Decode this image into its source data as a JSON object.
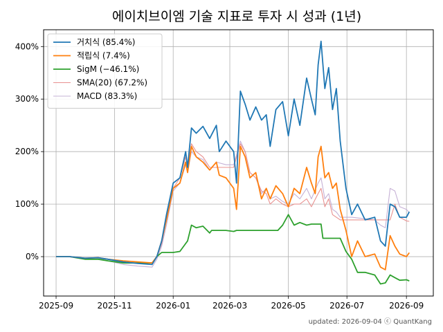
{
  "chart_data": {
    "type": "line",
    "title": "에이치브이엠 기술 지표로 투자 시 성과 (1년)",
    "xlabel": "",
    "ylabel": "",
    "x_ticks": [
      "2025-09",
      "2025-11",
      "2026-01",
      "2026-03",
      "2026-05",
      "2026-07",
      "2026-09"
    ],
    "y_ticks": [
      "0%",
      "100%",
      "200%",
      "300%",
      "400%"
    ],
    "xlim": [
      "2025-08-19",
      "2026-09-29"
    ],
    "ylim": [
      -75,
      432
    ],
    "grid": true,
    "legend_position": "top-left",
    "series": [
      {
        "name": "거치식 (85.4%)",
        "color": "#1f77b4",
        "points": [
          [
            "2025-09-01",
            0
          ],
          [
            "2025-09-15",
            0
          ],
          [
            "2025-10-01",
            -3
          ],
          [
            "2025-10-15",
            -2
          ],
          [
            "2025-10-25",
            -5
          ],
          [
            "2025-11-10",
            -10
          ],
          [
            "2025-11-25",
            -13
          ],
          [
            "2025-12-10",
            -15
          ],
          [
            "2025-12-15",
            0
          ],
          [
            "2025-12-20",
            30
          ],
          [
            "2025-12-25",
            80
          ],
          [
            "2026-01-01",
            140
          ],
          [
            "2026-01-08",
            150
          ],
          [
            "2026-01-14",
            200
          ],
          [
            "2026-01-16",
            170
          ],
          [
            "2026-01-20",
            245
          ],
          [
            "2026-01-25",
            235
          ],
          [
            "2026-02-01",
            248
          ],
          [
            "2026-02-08",
            225
          ],
          [
            "2026-02-15",
            250
          ],
          [
            "2026-02-18",
            200
          ],
          [
            "2026-02-25",
            220
          ],
          [
            "2026-03-05",
            200
          ],
          [
            "2026-03-08",
            140
          ],
          [
            "2026-03-12",
            315
          ],
          [
            "2026-03-17",
            290
          ],
          [
            "2026-03-22",
            260
          ],
          [
            "2026-03-28",
            285
          ],
          [
            "2026-04-03",
            260
          ],
          [
            "2026-04-08",
            270
          ],
          [
            "2026-04-12",
            210
          ],
          [
            "2026-04-18",
            280
          ],
          [
            "2026-04-25",
            295
          ],
          [
            "2026-05-01",
            230
          ],
          [
            "2026-05-07",
            300
          ],
          [
            "2026-05-13",
            250
          ],
          [
            "2026-05-20",
            340
          ],
          [
            "2026-05-25",
            300
          ],
          [
            "2026-05-29",
            270
          ],
          [
            "2026-06-01",
            365
          ],
          [
            "2026-06-04",
            410
          ],
          [
            "2026-06-08",
            320
          ],
          [
            "2026-06-12",
            360
          ],
          [
            "2026-06-16",
            280
          ],
          [
            "2026-06-20",
            320
          ],
          [
            "2026-06-24",
            220
          ],
          [
            "2026-06-30",
            130
          ],
          [
            "2026-07-06",
            80
          ],
          [
            "2026-07-12",
            100
          ],
          [
            "2026-07-20",
            70
          ],
          [
            "2026-07-30",
            75
          ],
          [
            "2026-08-05",
            30
          ],
          [
            "2026-08-10",
            20
          ],
          [
            "2026-08-15",
            100
          ],
          [
            "2026-08-20",
            95
          ],
          [
            "2026-08-25",
            75
          ],
          [
            "2026-09-01",
            75
          ],
          [
            "2026-09-04",
            85.4
          ]
        ]
      },
      {
        "name": "적립식 (7.4%)",
        "color": "#ff7f0e",
        "points": [
          [
            "2025-09-01",
            0
          ],
          [
            "2025-09-15",
            0
          ],
          [
            "2025-10-01",
            -3
          ],
          [
            "2025-10-15",
            -2
          ],
          [
            "2025-10-25",
            -5
          ],
          [
            "2025-11-10",
            -8
          ],
          [
            "2025-11-25",
            -10
          ],
          [
            "2025-12-10",
            -12
          ],
          [
            "2025-12-15",
            0
          ],
          [
            "2025-12-20",
            30
          ],
          [
            "2025-12-25",
            70
          ],
          [
            "2026-01-01",
            130
          ],
          [
            "2026-01-08",
            140
          ],
          [
            "2026-01-14",
            180
          ],
          [
            "2026-01-16",
            160
          ],
          [
            "2026-01-20",
            210
          ],
          [
            "2026-01-25",
            190
          ],
          [
            "2026-02-01",
            180
          ],
          [
            "2026-02-08",
            165
          ],
          [
            "2026-02-15",
            180
          ],
          [
            "2026-02-18",
            155
          ],
          [
            "2026-02-25",
            150
          ],
          [
            "2026-03-05",
            130
          ],
          [
            "2026-03-08",
            90
          ],
          [
            "2026-03-12",
            210
          ],
          [
            "2026-03-17",
            190
          ],
          [
            "2026-03-22",
            150
          ],
          [
            "2026-03-28",
            160
          ],
          [
            "2026-04-03",
            110
          ],
          [
            "2026-04-08",
            130
          ],
          [
            "2026-04-12",
            110
          ],
          [
            "2026-04-18",
            135
          ],
          [
            "2026-04-25",
            120
          ],
          [
            "2026-05-01",
            95
          ],
          [
            "2026-05-07",
            130
          ],
          [
            "2026-05-13",
            120
          ],
          [
            "2026-05-20",
            170
          ],
          [
            "2026-05-25",
            140
          ],
          [
            "2026-05-29",
            120
          ],
          [
            "2026-06-01",
            190
          ],
          [
            "2026-06-04",
            210
          ],
          [
            "2026-06-08",
            150
          ],
          [
            "2026-06-12",
            160
          ],
          [
            "2026-06-16",
            130
          ],
          [
            "2026-06-20",
            140
          ],
          [
            "2026-06-24",
            90
          ],
          [
            "2026-06-30",
            50
          ],
          [
            "2026-07-06",
            0
          ],
          [
            "2026-07-12",
            30
          ],
          [
            "2026-07-20",
            0
          ],
          [
            "2026-07-30",
            5
          ],
          [
            "2026-08-05",
            -20
          ],
          [
            "2026-08-10",
            -25
          ],
          [
            "2026-08-15",
            40
          ],
          [
            "2026-08-20",
            20
          ],
          [
            "2026-08-25",
            5
          ],
          [
            "2026-09-01",
            0
          ],
          [
            "2026-09-04",
            7.4
          ]
        ]
      },
      {
        "name": "SigM (−46.1%)",
        "color": "#2ca02c",
        "points": [
          [
            "2025-09-01",
            0
          ],
          [
            "2025-09-15",
            0
          ],
          [
            "2025-10-01",
            -5
          ],
          [
            "2025-10-15",
            -5
          ],
          [
            "2025-10-25",
            -8
          ],
          [
            "2025-11-10",
            -12
          ],
          [
            "2025-11-25",
            -12
          ],
          [
            "2025-12-10",
            -12
          ],
          [
            "2025-12-15",
            0
          ],
          [
            "2025-12-20",
            8
          ],
          [
            "2026-01-01",
            8
          ],
          [
            "2026-01-08",
            10
          ],
          [
            "2026-01-14",
            25
          ],
          [
            "2026-01-16",
            30
          ],
          [
            "2026-01-20",
            60
          ],
          [
            "2026-01-25",
            55
          ],
          [
            "2026-02-01",
            58
          ],
          [
            "2026-02-08",
            45
          ],
          [
            "2026-02-10",
            50
          ],
          [
            "2026-02-25",
            50
          ],
          [
            "2026-03-05",
            48
          ],
          [
            "2026-03-08",
            50
          ],
          [
            "2026-03-17",
            50
          ],
          [
            "2026-04-01",
            50
          ],
          [
            "2026-04-20",
            50
          ],
          [
            "2026-04-25",
            60
          ],
          [
            "2026-05-01",
            80
          ],
          [
            "2026-05-07",
            60
          ],
          [
            "2026-05-13",
            65
          ],
          [
            "2026-05-20",
            60
          ],
          [
            "2026-05-25",
            62
          ],
          [
            "2026-06-04",
            62
          ],
          [
            "2026-06-06",
            35
          ],
          [
            "2026-06-16",
            35
          ],
          [
            "2026-06-24",
            35
          ],
          [
            "2026-06-30",
            10
          ],
          [
            "2026-07-06",
            -5
          ],
          [
            "2026-07-12",
            -30
          ],
          [
            "2026-07-20",
            -30
          ],
          [
            "2026-07-30",
            -35
          ],
          [
            "2026-08-05",
            -52
          ],
          [
            "2026-08-10",
            -50
          ],
          [
            "2026-08-15",
            -35
          ],
          [
            "2026-08-20",
            -40
          ],
          [
            "2026-08-25",
            -45
          ],
          [
            "2026-09-01",
            -44
          ],
          [
            "2026-09-04",
            -46.1
          ]
        ]
      },
      {
        "name": "SMA(20) (67.2%)",
        "color": "#e8908f",
        "points": [
          [
            "2025-09-01",
            0
          ],
          [
            "2025-09-15",
            0
          ],
          [
            "2025-10-01",
            -3
          ],
          [
            "2025-10-15",
            -2
          ],
          [
            "2025-10-25",
            -5
          ],
          [
            "2025-11-10",
            -10
          ],
          [
            "2025-11-25",
            -13
          ],
          [
            "2025-12-10",
            -15
          ],
          [
            "2025-12-15",
            0
          ],
          [
            "2025-12-20",
            25
          ],
          [
            "2025-12-25",
            70
          ],
          [
            "2026-01-01",
            130
          ],
          [
            "2026-01-08",
            150
          ],
          [
            "2026-01-14",
            190
          ],
          [
            "2026-01-16",
            170
          ],
          [
            "2026-01-20",
            215
          ],
          [
            "2026-01-25",
            200
          ],
          [
            "2026-02-01",
            190
          ],
          [
            "2026-02-08",
            170
          ],
          [
            "2026-02-15",
            170
          ],
          [
            "2026-02-25",
            170
          ],
          [
            "2026-03-05",
            170
          ],
          [
            "2026-03-12",
            215
          ],
          [
            "2026-03-17",
            200
          ],
          [
            "2026-03-22",
            160
          ],
          [
            "2026-03-28",
            150
          ],
          [
            "2026-04-03",
            125
          ],
          [
            "2026-04-08",
            120
          ],
          [
            "2026-04-12",
            100
          ],
          [
            "2026-04-18",
            110
          ],
          [
            "2026-04-25",
            100
          ],
          [
            "2026-05-01",
            95
          ],
          [
            "2026-05-07",
            100
          ],
          [
            "2026-05-13",
            100
          ],
          [
            "2026-05-20",
            110
          ],
          [
            "2026-05-25",
            95
          ],
          [
            "2026-06-01",
            120
          ],
          [
            "2026-06-04",
            130
          ],
          [
            "2026-06-08",
            95
          ],
          [
            "2026-06-12",
            110
          ],
          [
            "2026-06-16",
            80
          ],
          [
            "2026-06-20",
            75
          ],
          [
            "2026-06-24",
            70
          ],
          [
            "2026-07-06",
            70
          ],
          [
            "2026-07-30",
            70
          ],
          [
            "2026-08-05",
            70
          ],
          [
            "2026-08-15",
            70
          ],
          [
            "2026-08-20",
            100
          ],
          [
            "2026-08-25",
            75
          ],
          [
            "2026-09-01",
            68
          ],
          [
            "2026-09-04",
            67.2
          ]
        ]
      },
      {
        "name": "MACD (83.3%)",
        "color": "#c5b0d5",
        "points": [
          [
            "2025-09-01",
            0
          ],
          [
            "2025-09-15",
            0
          ],
          [
            "2025-10-01",
            -3
          ],
          [
            "2025-10-15",
            -2
          ],
          [
            "2025-10-25",
            -8
          ],
          [
            "2025-11-10",
            -15
          ],
          [
            "2025-11-25",
            -18
          ],
          [
            "2025-12-10",
            -20
          ],
          [
            "2025-12-15",
            -5
          ],
          [
            "2025-12-20",
            20
          ],
          [
            "2025-12-25",
            60
          ],
          [
            "2026-01-01",
            125
          ],
          [
            "2026-01-08",
            140
          ],
          [
            "2026-01-14",
            175
          ],
          [
            "2026-01-16",
            160
          ],
          [
            "2026-01-20",
            200
          ],
          [
            "2026-01-25",
            190
          ],
          [
            "2026-02-01",
            185
          ],
          [
            "2026-02-08",
            165
          ],
          [
            "2026-02-15",
            180
          ],
          [
            "2026-02-25",
            175
          ],
          [
            "2026-03-05",
            175
          ],
          [
            "2026-03-12",
            220
          ],
          [
            "2026-03-17",
            200
          ],
          [
            "2026-03-22",
            160
          ],
          [
            "2026-03-28",
            150
          ],
          [
            "2026-04-03",
            120
          ],
          [
            "2026-04-08",
            130
          ],
          [
            "2026-04-12",
            110
          ],
          [
            "2026-04-18",
            115
          ],
          [
            "2026-04-25",
            105
          ],
          [
            "2026-05-01",
            100
          ],
          [
            "2026-05-07",
            120
          ],
          [
            "2026-05-13",
            110
          ],
          [
            "2026-05-20",
            130
          ],
          [
            "2026-05-25",
            110
          ],
          [
            "2026-06-01",
            140
          ],
          [
            "2026-06-04",
            150
          ],
          [
            "2026-06-08",
            110
          ],
          [
            "2026-06-12",
            120
          ],
          [
            "2026-06-16",
            90
          ],
          [
            "2026-06-20",
            85
          ],
          [
            "2026-06-24",
            75
          ],
          [
            "2026-07-06",
            75
          ],
          [
            "2026-07-30",
            70
          ],
          [
            "2026-08-05",
            60
          ],
          [
            "2026-08-10",
            55
          ],
          [
            "2026-08-15",
            130
          ],
          [
            "2026-08-20",
            125
          ],
          [
            "2026-08-25",
            95
          ],
          [
            "2026-09-01",
            90
          ],
          [
            "2026-09-04",
            83.3
          ]
        ]
      }
    ]
  },
  "footer": "updated: 2026-09-04 ⓒ QuantKang"
}
